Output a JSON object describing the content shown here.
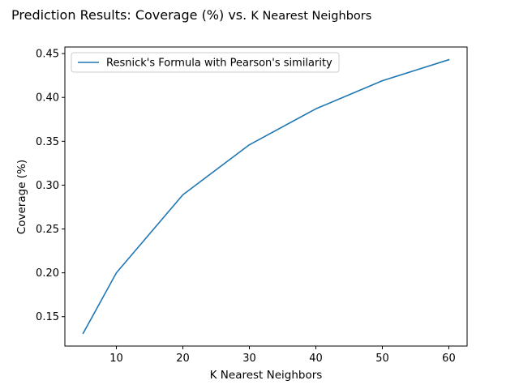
{
  "chart_data": {
    "type": "line",
    "title_main": "Prediction Results: Coverage (%) vs.",
    "title_sub": "K Nearest Neighbors",
    "xlabel": "K Nearest Neighbors",
    "ylabel": "Coverage (%)",
    "xlim": [
      2.25,
      62.75
    ],
    "ylim": [
      0.1165,
      0.4575
    ],
    "xticks": [
      10,
      20,
      30,
      40,
      50,
      60
    ],
    "xtick_labels": [
      "10",
      "20",
      "30",
      "40",
      "50",
      "60"
    ],
    "yticks": [
      0.15,
      0.2,
      0.25,
      0.3,
      0.35,
      0.4,
      0.45
    ],
    "ytick_labels": [
      "0.15",
      "0.20",
      "0.25",
      "0.30",
      "0.35",
      "0.40",
      "0.45"
    ],
    "grid": false,
    "legend_position": "top-left",
    "series": [
      {
        "name": "Resnick's Formula with Pearson's similarity",
        "color": "#1f77b4",
        "x": [
          5,
          10,
          20,
          30,
          40,
          50,
          60
        ],
        "y": [
          0.131,
          0.2,
          0.289,
          0.346,
          0.387,
          0.419,
          0.443
        ]
      }
    ]
  }
}
